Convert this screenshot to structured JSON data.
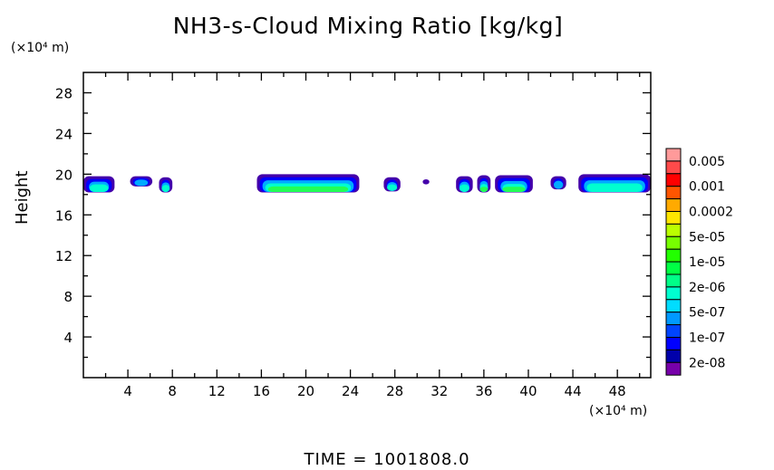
{
  "chart_data": {
    "type": "heatmap",
    "title": "NH3-s-Cloud Mixing Ratio [kg/kg]",
    "xlabel": "",
    "x_unit": "(×10⁴ m)",
    "ylabel": "Height",
    "y_unit": "(×10⁴ m)",
    "xlim": [
      0,
      51
    ],
    "ylim": [
      0,
      30
    ],
    "x_ticks": [
      4,
      8,
      12,
      16,
      20,
      24,
      28,
      32,
      36,
      40,
      44,
      48
    ],
    "y_ticks": [
      4,
      8,
      12,
      16,
      20,
      24,
      28
    ],
    "footer": "TIME = 1001808.0",
    "colorbar": {
      "colors": [
        "#ff9a9a",
        "#ff4a4a",
        "#ff0000",
        "#ff5500",
        "#ffaa00",
        "#ffe600",
        "#bbff00",
        "#77ff00",
        "#22ff00",
        "#00ff44",
        "#00ff88",
        "#00ffd0",
        "#00ddff",
        "#0099ff",
        "#0044ff",
        "#0000ff",
        "#0000aa",
        "#7700aa"
      ],
      "labels": [
        "0.005",
        "0.001",
        "0.0002",
        "5e-05",
        "1e-05",
        "2e-06",
        "5e-07",
        "1e-07",
        "2e-08"
      ]
    },
    "cloud_regions": [
      {
        "x": [
          0,
          2.8
        ],
        "y": [
          18.2,
          19.8
        ],
        "max_level": "2e-06"
      },
      {
        "x": [
          4.2,
          6.2
        ],
        "y": [
          18.8,
          19.8
        ],
        "max_level": "5e-07"
      },
      {
        "x": [
          6.8,
          8.0
        ],
        "y": [
          18.2,
          19.7
        ],
        "max_level": "2e-06"
      },
      {
        "x": [
          15.6,
          24.8
        ],
        "y": [
          18.2,
          20.0
        ],
        "max_level": "1e-05"
      },
      {
        "x": [
          27.0,
          28.5
        ],
        "y": [
          18.3,
          19.7
        ],
        "max_level": "2e-06"
      },
      {
        "x": [
          30.5,
          31.1
        ],
        "y": [
          19.0,
          19.5
        ],
        "max_level": "2e-08"
      },
      {
        "x": [
          33.5,
          35.0
        ],
        "y": [
          18.2,
          19.8
        ],
        "max_level": "2e-06"
      },
      {
        "x": [
          35.4,
          36.6
        ],
        "y": [
          18.2,
          19.9
        ],
        "max_level": "1e-05"
      },
      {
        "x": [
          37.0,
          40.4
        ],
        "y": [
          18.2,
          19.9
        ],
        "max_level": "1e-05"
      },
      {
        "x": [
          42.0,
          43.4
        ],
        "y": [
          18.5,
          19.8
        ],
        "max_level": "5e-07"
      },
      {
        "x": [
          44.5,
          51.0
        ],
        "y": [
          18.2,
          20.0
        ],
        "max_level": "2e-06"
      }
    ]
  }
}
